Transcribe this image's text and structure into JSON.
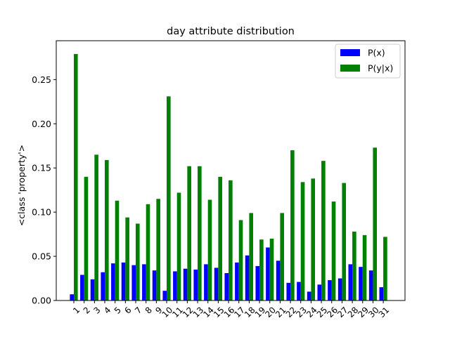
{
  "chart_data": {
    "type": "bar",
    "title": "day attribute distribution",
    "xlabel": "",
    "ylabel": "<class 'property'>",
    "categories": [
      "1",
      "2",
      "3",
      "4",
      "5",
      "6",
      "7",
      "8",
      "9",
      "10",
      "11",
      "12",
      "13",
      "14",
      "15",
      "16",
      "17",
      "18",
      "19",
      "20",
      "21",
      "22",
      "23",
      "24",
      "25",
      "26",
      "27",
      "28",
      "29",
      "30",
      "31"
    ],
    "series": [
      {
        "name": "P(x)",
        "color": "#0000ff",
        "values": [
          0.007,
          0.029,
          0.024,
          0.032,
          0.042,
          0.043,
          0.04,
          0.041,
          0.034,
          0.011,
          0.033,
          0.036,
          0.035,
          0.041,
          0.037,
          0.031,
          0.043,
          0.051,
          0.039,
          0.06,
          0.045,
          0.02,
          0.021,
          0.01,
          0.018,
          0.023,
          0.025,
          0.041,
          0.038,
          0.034,
          0.015
        ]
      },
      {
        "name": "P(y|x)",
        "color": "#008000",
        "values": [
          0.279,
          0.14,
          0.165,
          0.159,
          0.113,
          0.094,
          0.087,
          0.109,
          0.115,
          0.231,
          0.122,
          0.152,
          0.152,
          0.114,
          0.14,
          0.136,
          0.091,
          0.099,
          0.069,
          0.07,
          0.099,
          0.17,
          0.134,
          0.138,
          0.158,
          0.112,
          0.133,
          0.078,
          0.074,
          0.173,
          0.072
        ]
      }
    ],
    "ylim": [
      0,
      0.294
    ],
    "yticks": [
      0.0,
      0.05,
      0.1,
      0.15,
      0.2,
      0.25
    ],
    "ytick_labels": [
      "0.00",
      "0.05",
      "0.10",
      "0.15",
      "0.20",
      "0.25"
    ],
    "xtick_rotation": 45,
    "grid": false,
    "legend_position": "top-right"
  }
}
